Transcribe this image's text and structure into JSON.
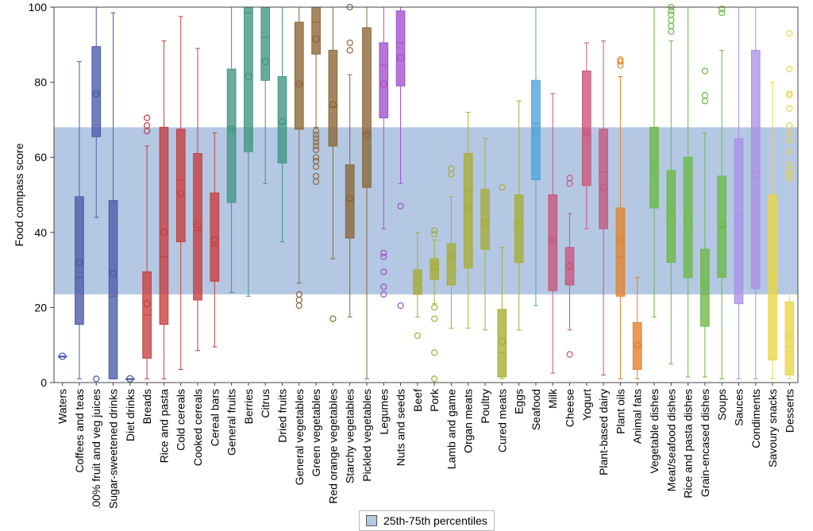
{
  "chart_data": {
    "type": "box",
    "ylabel": "Food compass score",
    "ylim": [
      0,
      100
    ],
    "yticks": [
      0,
      20,
      40,
      60,
      80,
      100
    ],
    "band": {
      "label": "25th-75th percentiles",
      "range": [
        23.5,
        68
      ],
      "color": "#b4c8e4"
    },
    "legend_position": "bottom-center",
    "categories": [
      {
        "name": "Waters",
        "color": "#4a5aa8",
        "min": 7,
        "q1": 7,
        "median": 7,
        "q3": 7,
        "max": 7,
        "mean": 7,
        "outliers": []
      },
      {
        "name": "Coffees and teas",
        "color": "#4a5aa8",
        "min": 1,
        "q1": 15.5,
        "median": 28,
        "q3": 49.5,
        "max": 85.5,
        "mean": 32,
        "outliers": []
      },
      {
        "name": "100% fruit and veg juices",
        "color": "#4a5aa8",
        "min": 44,
        "q1": 65.5,
        "median": 77,
        "q3": 89.5,
        "max": 100,
        "mean": 77,
        "outliers": [
          1
        ]
      },
      {
        "name": "Sugar-sweetened drinks",
        "color": "#4a5aa8",
        "min": 1,
        "q1": 1,
        "median": 23,
        "q3": 48.5,
        "max": 98.5,
        "mean": 29,
        "outliers": []
      },
      {
        "name": "Diet drinks",
        "color": "#4a5aa8",
        "min": 1,
        "q1": 1,
        "median": 1,
        "q3": 1,
        "max": 1,
        "mean": 1,
        "outliers": []
      },
      {
        "name": "Breads",
        "color": "#c73d3d",
        "min": 1,
        "q1": 6.5,
        "median": 18,
        "q3": 29.5,
        "max": 63,
        "mean": 21,
        "outliers": [
          67,
          68.5,
          70.5
        ]
      },
      {
        "name": "Rice and pasta",
        "color": "#c73d3d",
        "min": 1,
        "q1": 15.5,
        "median": 33.5,
        "q3": 68,
        "max": 91,
        "mean": 40,
        "outliers": []
      },
      {
        "name": "Cold cereals",
        "color": "#c73d3d",
        "min": 3.5,
        "q1": 37.5,
        "median": 54,
        "q3": 67.5,
        "max": 97.5,
        "mean": 50.5,
        "outliers": []
      },
      {
        "name": "Cooked cereals",
        "color": "#c73d3d",
        "min": 8.5,
        "q1": 22,
        "median": 40.5,
        "q3": 61,
        "max": 89,
        "mean": 42,
        "outliers": []
      },
      {
        "name": "Cereal bars",
        "color": "#c73d3d",
        "min": 9.5,
        "q1": 27,
        "median": 36.5,
        "q3": 50.5,
        "max": 66.5,
        "mean": 38,
        "outliers": []
      },
      {
        "name": "General fruits",
        "color": "#3f9583",
        "min": 24,
        "q1": 48,
        "median": 67.5,
        "q3": 83.5,
        "max": 100,
        "mean": 67.5,
        "outliers": []
      },
      {
        "name": "Berries",
        "color": "#3f9583",
        "min": 23,
        "q1": 61.5,
        "median": 98.5,
        "q3": 100,
        "max": 100,
        "mean": 81.5,
        "outliers": []
      },
      {
        "name": "Citrus",
        "color": "#3f9583",
        "min": 53,
        "q1": 80.5,
        "median": 92,
        "q3": 100,
        "max": 100,
        "mean": 85.5,
        "outliers": []
      },
      {
        "name": "Dried fruits",
        "color": "#3f9583",
        "min": 37.5,
        "q1": 58.5,
        "median": 69,
        "q3": 81.5,
        "max": 100,
        "mean": 69.5,
        "outliers": []
      },
      {
        "name": "General vegetables",
        "color": "#8a6536",
        "min": 26.5,
        "q1": 67.5,
        "median": 79.5,
        "q3": 96,
        "max": 100,
        "mean": 79.5,
        "outliers": [
          20.5,
          22,
          23.5
        ]
      },
      {
        "name": "Green vegetables",
        "color": "#8a6536",
        "min": 68,
        "q1": 87.5,
        "median": 96,
        "q3": 100,
        "max": 100,
        "mean": 91.5,
        "outliers": [
          53.5,
          55,
          57.5,
          59,
          60,
          62,
          63,
          64,
          65,
          66,
          67
        ]
      },
      {
        "name": "Red orange vegetables",
        "color": "#8a6536",
        "min": 33,
        "q1": 63,
        "median": 73.5,
        "q3": 88.5,
        "max": 100,
        "mean": 74,
        "outliers": [
          17
        ]
      },
      {
        "name": "Starchy vegetables",
        "color": "#8a6536",
        "min": 17.5,
        "q1": 38.5,
        "median": 48.5,
        "q3": 58,
        "max": 82,
        "mean": 49,
        "outliers": [
          88.5,
          90.5,
          100
        ]
      },
      {
        "name": "Pickled vegetables",
        "color": "#8a6536",
        "min": 1,
        "q1": 52,
        "median": 66.5,
        "q3": 94.5,
        "max": 100,
        "mean": 66,
        "outliers": []
      },
      {
        "name": "Legumes",
        "color": "#a24fcd",
        "min": 41,
        "q1": 70.5,
        "median": 84.5,
        "q3": 90.5,
        "max": 100,
        "mean": 79.5,
        "outliers": [
          23.5,
          25.5,
          29.5,
          33.5,
          34.5
        ]
      },
      {
        "name": "Nuts and seeds",
        "color": "#a24fcd",
        "min": 53,
        "q1": 79,
        "median": 90.5,
        "q3": 99,
        "max": 100,
        "mean": 86.5,
        "outliers": [
          20.5,
          47
        ]
      },
      {
        "name": "Beef",
        "color": "#a7ad34",
        "min": 17.5,
        "q1": 23.5,
        "median": 26,
        "q3": 30,
        "max": 40,
        "mean": 27,
        "outliers": [
          12.5
        ]
      },
      {
        "name": "Pork",
        "color": "#a7ad34",
        "min": 21,
        "q1": 27.5,
        "median": 30,
        "q3": 33,
        "max": 38,
        "mean": 31,
        "outliers": [
          1,
          8,
          17,
          20,
          39.5,
          40.5
        ]
      },
      {
        "name": "Lamb and game",
        "color": "#a7ad34",
        "min": 14.5,
        "q1": 26,
        "median": 30.5,
        "q3": 37,
        "max": 49.5,
        "mean": 33.5,
        "outliers": [
          55.5,
          57
        ]
      },
      {
        "name": "Organ meats",
        "color": "#a7ad34",
        "min": 14.5,
        "q1": 30.5,
        "median": 51,
        "q3": 61,
        "max": 72,
        "mean": 46.5,
        "outliers": []
      },
      {
        "name": "Poultry",
        "color": "#a7ad34",
        "min": 14,
        "q1": 35.5,
        "median": 43,
        "q3": 51.5,
        "max": 65,
        "mean": 42.5,
        "outliers": []
      },
      {
        "name": "Cured meats",
        "color": "#a7ad34",
        "min": 1,
        "q1": 1.5,
        "median": 8,
        "q3": 19.5,
        "max": 36,
        "mean": 11,
        "outliers": [
          52
        ]
      },
      {
        "name": "Eggs",
        "color": "#a7ad34",
        "min": 14,
        "q1": 32,
        "median": 42.5,
        "q3": 50,
        "max": 75,
        "mean": 42.5,
        "outliers": []
      },
      {
        "name": "Seafood",
        "color": "#4ea3dc",
        "min": 20.5,
        "q1": 54,
        "median": 69,
        "q3": 80.5,
        "max": 100,
        "mean": 67,
        "outliers": []
      },
      {
        "name": "Milk",
        "color": "#c8557a",
        "min": 2.5,
        "q1": 24.5,
        "median": 38,
        "q3": 50,
        "max": 77,
        "mean": 38,
        "outliers": []
      },
      {
        "name": "Cheese",
        "color": "#c8557a",
        "min": 14,
        "q1": 26,
        "median": 30.5,
        "q3": 36,
        "max": 45,
        "mean": 31,
        "outliers": [
          7.5,
          53,
          54.5
        ]
      },
      {
        "name": "Yogurt",
        "color": "#c8557a",
        "min": 41,
        "q1": 52.5,
        "median": 66.5,
        "q3": 83,
        "max": 90.5,
        "mean": 66.5,
        "outliers": []
      },
      {
        "name": "Plant-based dairy",
        "color": "#c8557a",
        "min": 2,
        "q1": 41,
        "median": 56,
        "q3": 67.5,
        "max": 91,
        "mean": 52,
        "outliers": []
      },
      {
        "name": "Plant oils",
        "color": "#e0822a",
        "min": 1,
        "q1": 23,
        "median": 33.5,
        "q3": 46.5,
        "max": 81.5,
        "mean": 38,
        "outliers": [
          84.5,
          85.5,
          86
        ]
      },
      {
        "name": "Animal fats",
        "color": "#e0822a",
        "min": 1,
        "q1": 3.5,
        "median": 9.5,
        "q3": 16,
        "max": 28,
        "mean": 10,
        "outliers": []
      },
      {
        "name": "Vegetable dishes",
        "color": "#6bb944",
        "min": 17.5,
        "q1": 46.5,
        "median": 55,
        "q3": 68,
        "max": 100,
        "mean": 57.5,
        "outliers": []
      },
      {
        "name": "Meat/seafood dishes",
        "color": "#6bb944",
        "min": 5,
        "q1": 32,
        "median": 43,
        "q3": 56.5,
        "max": 91,
        "mean": 46,
        "outliers": [
          93.5,
          95,
          96.5,
          98,
          99,
          100
        ]
      },
      {
        "name": "Rice and pasta dishes",
        "color": "#6bb944",
        "min": 1.5,
        "q1": 28,
        "median": 41,
        "q3": 60,
        "max": 100,
        "mean": 44,
        "outliers": []
      },
      {
        "name": "Grain-encased dishes",
        "color": "#6bb944",
        "min": 1.5,
        "q1": 15,
        "median": 23.5,
        "q3": 35.5,
        "max": 66.5,
        "mean": 26,
        "outliers": [
          75,
          76.5,
          83
        ]
      },
      {
        "name": "Soups",
        "color": "#6bb944",
        "min": 1,
        "q1": 28,
        "median": 41.5,
        "q3": 55,
        "max": 88.5,
        "mean": 42,
        "outliers": [
          98.5,
          99.5
        ]
      },
      {
        "name": "Sauces",
        "color": "#a991e8",
        "min": 1,
        "q1": 21,
        "median": 41,
        "q3": 65,
        "max": 100,
        "mean": 44,
        "outliers": []
      },
      {
        "name": "Condiments",
        "color": "#a991e8",
        "min": 1,
        "q1": 25,
        "median": 56,
        "q3": 88.5,
        "max": 100,
        "mean": 55.5,
        "outliers": []
      },
      {
        "name": "Savoury snacks",
        "color": "#e8d548",
        "min": 1,
        "q1": 6,
        "median": 23.5,
        "q3": 50,
        "max": 80,
        "mean": 28,
        "outliers": []
      },
      {
        "name": "Desserts",
        "color": "#e8d548",
        "min": 1,
        "q1": 2,
        "median": 9.5,
        "q3": 21.5,
        "max": 54,
        "mean": 12.5,
        "outliers": [
          54.5,
          55.5,
          56.5,
          58,
          61.5,
          64.5,
          66.5,
          68.5,
          73,
          76.5,
          77,
          83.5,
          93
        ]
      }
    ]
  }
}
